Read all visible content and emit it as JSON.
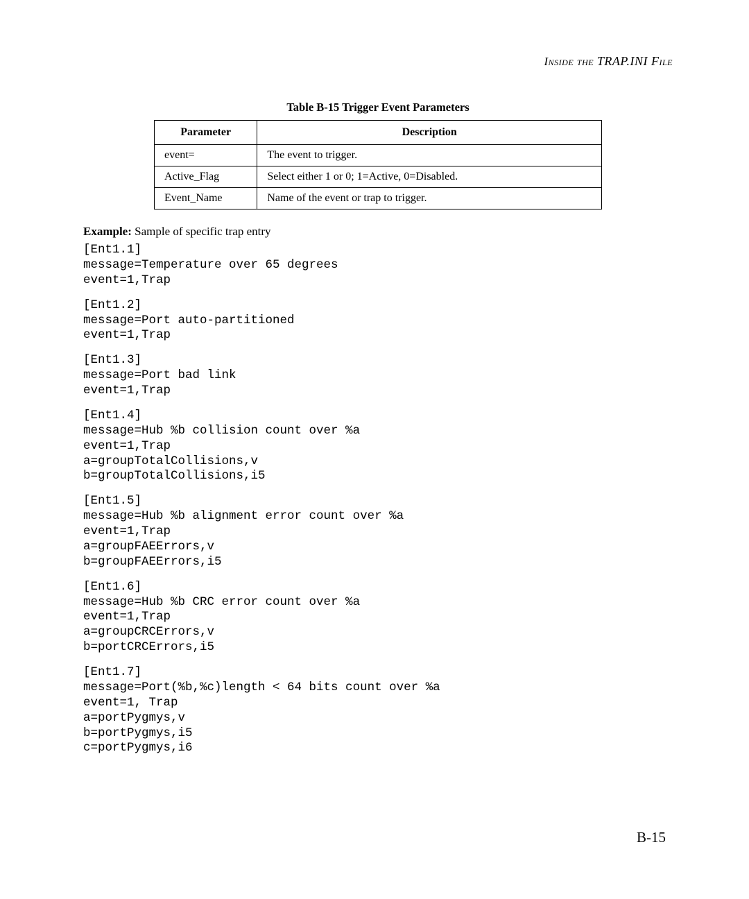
{
  "header": {
    "running_title": "Inside the TRAP.INI File"
  },
  "table": {
    "caption": "Table B-15  Trigger Event Parameters",
    "columns": [
      "Parameter",
      "Description"
    ],
    "rows": [
      [
        "event=",
        "The event to trigger."
      ],
      [
        "Active_Flag",
        "Select either 1 or 0; 1=Active, 0=Disabled."
      ],
      [
        "Event_Name",
        "Name of the event or trap to trigger."
      ]
    ],
    "border_color": "#000000",
    "header_fontweight": "bold"
  },
  "example": {
    "label": "Example:",
    "text": "Sample of specific trap entry"
  },
  "code_blocks": [
    "[Ent1.1]\nmessage=Temperature over 65 degrees\nevent=1,Trap",
    "[Ent1.2]\nmessage=Port auto-partitioned\nevent=1,Trap",
    "[Ent1.3]\nmessage=Port bad link\nevent=1,Trap",
    "[Ent1.4]\nmessage=Hub %b collision count over %a\nevent=1,Trap\na=groupTotalCollisions,v\nb=groupTotalCollisions,i5",
    "[Ent1.5]\nmessage=Hub %b alignment error count over %a\nevent=1,Trap\na=groupFAEErrors,v\nb=groupFAEErrors,i5",
    "[Ent1.6]\nmessage=Hub %b CRC error count over %a\nevent=1,Trap\na=groupCRCErrors,v\nb=portCRCErrors,i5",
    "[Ent1.7]\nmessage=Port(%b,%c)length < 64 bits count over %a\nevent=1, Trap\na=portPygmys,v\nb=portPygmys,i5\nc=portPygmys,i6"
  ],
  "page_number": "B-15",
  "style": {
    "background_color": "#ffffff",
    "text_color": "#000000",
    "body_font": "Georgia, serif",
    "code_font": "Courier New, monospace",
    "body_fontsize_pt": 12,
    "code_fontsize_pt": 12,
    "caption_fontsize_pt": 12,
    "pagenum_fontsize_pt": 15
  }
}
